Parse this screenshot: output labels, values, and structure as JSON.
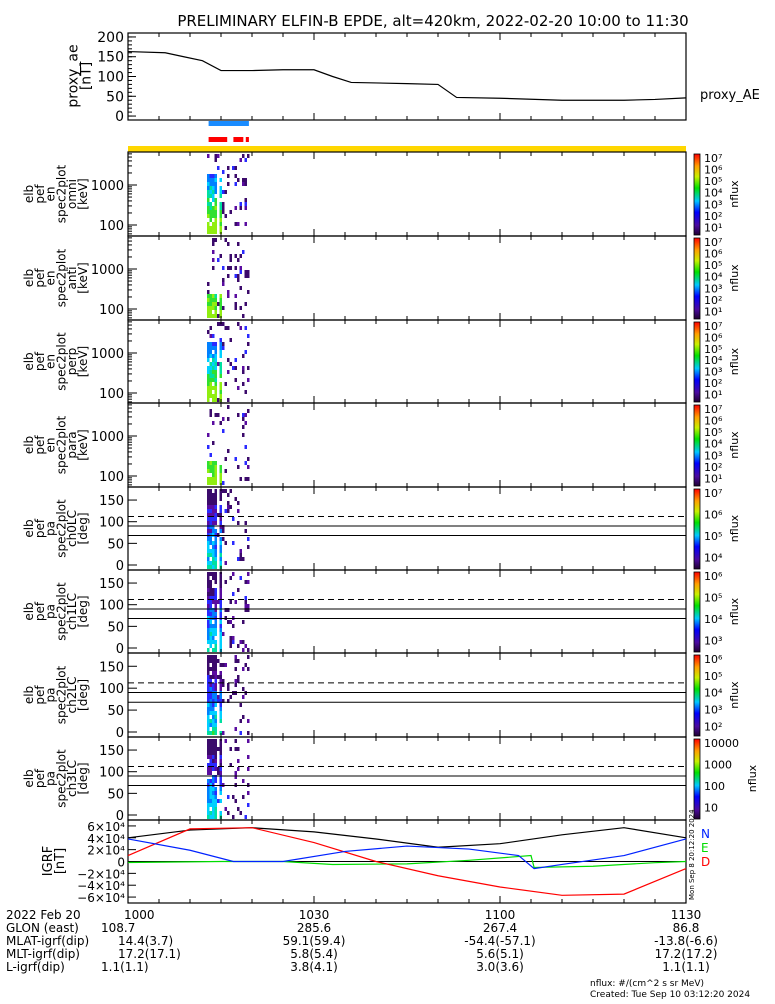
{
  "title": "PRELIMINARY ELFIN-B EPDE, alt=420km, 2022-02-20 10:00 to 11:30",
  "chart_data": [
    {
      "type": "line",
      "name": "proxy_ae",
      "ylabel": [
        "proxy_ae",
        "[nT]"
      ],
      "legend": "proxy_AE",
      "ylim": [
        -10,
        210
      ],
      "yticks": [
        {
          "v": 200,
          "label": "200"
        },
        {
          "v": 150,
          "label": "150"
        },
        {
          "v": 100,
          "label": "100"
        },
        {
          "v": 50,
          "label": "50"
        },
        {
          "v": 0,
          "label": "0"
        }
      ],
      "x_minutes": [
        0,
        6,
        9,
        12,
        15,
        20,
        25,
        30,
        33,
        36,
        45,
        50,
        53,
        60,
        70,
        80,
        85,
        90
      ],
      "values": [
        163,
        160,
        150,
        140,
        115,
        115,
        117,
        117,
        100,
        85,
        82,
        80,
        47,
        45,
        40,
        40,
        42,
        46
      ]
    },
    {
      "type": "bar-indicator",
      "name": "mode-bars",
      "science_bar_color": "#1a8cff",
      "fgs_bar_color": "#ff0000",
      "orbit_bar_color": "#ffd700",
      "science_bar": [
        [
          13,
          19.5
        ]
      ],
      "fgs_bars": [
        [
          13,
          16
        ],
        [
          17,
          18.6
        ],
        [
          19,
          19.5
        ]
      ]
    },
    {
      "type": "heatmap",
      "panels": [
        {
          "label": [
            "elb",
            "pef",
            "en",
            "spec2plot",
            "omni",
            "[keV]"
          ],
          "yscale": "log",
          "yticks": [
            "1000",
            "100"
          ],
          "cbar": [
            "10⁷",
            "10⁶",
            "10⁵",
            "10⁴",
            "10³",
            "10²",
            "10¹"
          ],
          "cbar_title": "nflux"
        },
        {
          "label": [
            "elb",
            "pef",
            "en",
            "spec2plot",
            "anti",
            "[keV]"
          ],
          "yscale": "log",
          "yticks": [
            "1000",
            "100"
          ],
          "cbar": [
            "10⁷",
            "10⁶",
            "10⁵",
            "10⁴",
            "10³",
            "10²",
            "10¹"
          ],
          "cbar_title": "nflux"
        },
        {
          "label": [
            "elb",
            "pef",
            "en",
            "spec2plot",
            "perp",
            "[keV]"
          ],
          "yscale": "log",
          "yticks": [
            "1000",
            "100"
          ],
          "cbar": [
            "10⁷",
            "10⁶",
            "10⁵",
            "10⁴",
            "10³",
            "10²",
            "10¹"
          ],
          "cbar_title": "nflux"
        },
        {
          "label": [
            "elb",
            "pef",
            "en",
            "spec2plot",
            "para",
            "[keV]"
          ],
          "yscale": "log",
          "yticks": [
            "1000",
            "100"
          ],
          "cbar": [
            "10⁷",
            "10⁶",
            "10⁵",
            "10⁴",
            "10³",
            "10²",
            "10¹"
          ],
          "cbar_title": "nflux"
        },
        {
          "label": [
            "elb",
            "pef",
            "pa",
            "spec2plot",
            "ch0LC",
            "[deg]"
          ],
          "yscale": "linear",
          "yticks": [
            "150",
            "100",
            "50",
            "0"
          ],
          "cbar": [
            "10⁷",
            "10⁶",
            "10⁵",
            "10⁴"
          ],
          "cbar_title": "nflux"
        },
        {
          "label": [
            "elb",
            "pef",
            "pa",
            "spec2plot",
            "ch1LC",
            "[deg]"
          ],
          "yscale": "linear",
          "yticks": [
            "150",
            "100",
            "50",
            "0"
          ],
          "cbar": [
            "10⁶",
            "10⁵",
            "10⁴",
            "10³"
          ],
          "cbar_title": "nflux"
        },
        {
          "label": [
            "elb",
            "pef",
            "pa",
            "spec2plot",
            "ch2LC",
            "[deg]"
          ],
          "yscale": "linear",
          "yticks": [
            "150",
            "100",
            "50",
            "0"
          ],
          "cbar": [
            "10⁶",
            "10⁵",
            "10⁴",
            "10³",
            "10²"
          ],
          "cbar_title": "nflux"
        },
        {
          "label": [
            "elb",
            "pef",
            "pa",
            "spec2plot",
            "ch3LC",
            "[deg]"
          ],
          "yscale": "linear",
          "yticks": [
            "150",
            "100",
            "50",
            "0"
          ],
          "cbar": [
            "10000",
            "1000",
            "100",
            "10"
          ],
          "cbar_title": "nflux"
        }
      ],
      "pa_reference_lines_deg": {
        "dashed": 112,
        "solid": [
          90,
          68
        ]
      }
    },
    {
      "type": "line",
      "name": "igrf",
      "ylabel": [
        "IGRF",
        "[nT]"
      ],
      "ylim": [
        -70000,
        70000
      ],
      "yticks": [
        {
          "v": 60000,
          "label": "6×10⁴"
        },
        {
          "v": 40000,
          "label": "4×10⁴"
        },
        {
          "v": 20000,
          "label": "2×10⁴"
        },
        {
          "v": 0,
          "label": "0"
        },
        {
          "v": -20000,
          "label": "−2×10⁴"
        },
        {
          "v": -40000,
          "label": "−4×10⁴"
        },
        {
          "v": -60000,
          "label": "−6×10⁴"
        }
      ],
      "side_text": "Mon Sep 8 20:12:20 2024",
      "series": [
        {
          "name": "N",
          "color": "#000000",
          "x": [
            0,
            10,
            20,
            30,
            40,
            50,
            60,
            70,
            80,
            90
          ],
          "values": [
            40000,
            53000,
            57000,
            50000,
            38000,
            24000,
            30000,
            45000,
            57000,
            40000
          ]
        },
        {
          "name": "E",
          "color": "#00dd00",
          "x": [
            0,
            15,
            25,
            33,
            45,
            55,
            65,
            65.5,
            75,
            85,
            90
          ],
          "values": [
            -1700,
            0,
            0,
            -5000,
            -4000,
            2000,
            10000,
            -10000,
            -8000,
            -2000,
            0
          ]
        },
        {
          "name": "D",
          "color": "#ff0000",
          "x": [
            0,
            10,
            20,
            30,
            40,
            50,
            60,
            70,
            80,
            90
          ],
          "values": [
            10000,
            55000,
            57000,
            32000,
            0,
            -24000,
            -43000,
            -57000,
            -55000,
            -12000
          ]
        },
        {
          "name": "blue",
          "color": "#0022ff",
          "x": [
            0,
            10,
            17,
            25,
            35,
            45,
            55,
            63,
            65.5,
            70,
            80,
            90
          ],
          "values": [
            38000,
            19000,
            0,
            0,
            17000,
            26000,
            21000,
            10000,
            -12000,
            -5000,
            10000,
            38000
          ]
        }
      ],
      "legend": [
        {
          "label": "N",
          "color": "#0022ff"
        },
        {
          "label": "E",
          "color": "#00dd00"
        },
        {
          "label": "D",
          "color": "#ff0000"
        }
      ]
    }
  ],
  "xaxis": {
    "rows": [
      {
        "label": "2022 Feb 20",
        "values": [
          "1000",
          "1030",
          "1100",
          "1130"
        ]
      },
      {
        "label": "GLON (east)",
        "values": [
          "108.7",
          "285.6",
          "267.4",
          "86.8"
        ]
      },
      {
        "label": "MLAT-igrf(dip)",
        "values": [
          "14.4(3.7)",
          "59.1(59.4)",
          "-54.4(-57.1)",
          "-13.8(-6.6)"
        ]
      },
      {
        "label": "MLT-igrf(dip)",
        "values": [
          "17.2(17.1)",
          "5.8(5.4)",
          "5.6(5.1)",
          "17.2(17.2)"
        ]
      },
      {
        "label": "L-igrf(dip)",
        "values": [
          "1.1(1.1)",
          "3.8(4.1)",
          "3.0(3.6)",
          "1.1(1.1)"
        ]
      }
    ],
    "minutes": [
      0,
      30,
      60,
      90
    ]
  },
  "footer": {
    "units": "nflux: #/(cm^2 s sr MeV)",
    "created": "Created: Tue Sep 10 03:12:20 2024"
  }
}
